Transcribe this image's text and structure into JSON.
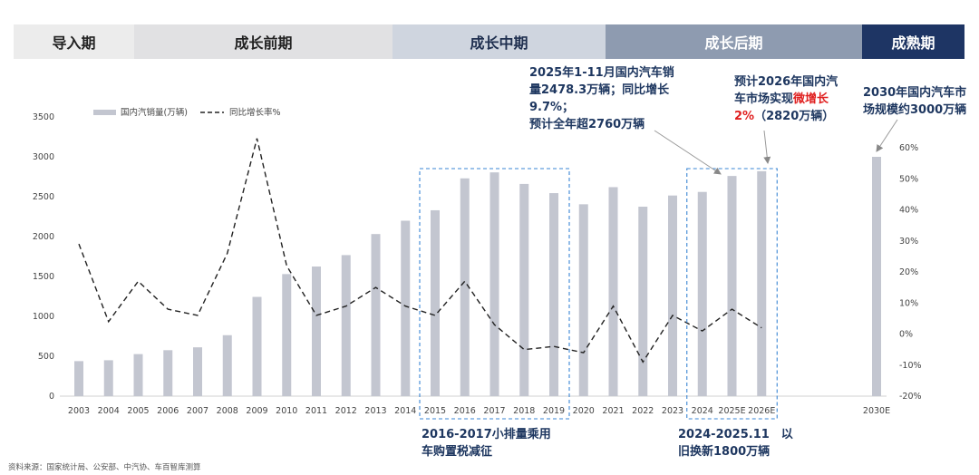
{
  "stages": [
    {
      "label": "导入期",
      "bg": "#ececec",
      "color": "#222222"
    },
    {
      "label": "成长前期",
      "bg": "#e1e1e3",
      "color": "#222222"
    },
    {
      "label": "成长中期",
      "bg": "#cfd5df",
      "color": "#1f2f4f"
    },
    {
      "label": "成长后期",
      "bg": "#8e9bb0",
      "color": "#ffffff"
    },
    {
      "label": "成熟期",
      "bg": "#1e3564",
      "color": "#ffffff"
    }
  ],
  "colors": {
    "bar": "#c3c6d0",
    "line": "#222222",
    "highlight_box": "#3a86d4",
    "annotation": "#1e3760",
    "emphasis": "#e02020"
  },
  "chart_data": {
    "type": "bar",
    "categories": [
      "2003",
      "2004",
      "2005",
      "2006",
      "2007",
      "2008",
      "2009",
      "2010",
      "2011",
      "2012",
      "2013",
      "2014",
      "2015",
      "2016",
      "2017",
      "2018",
      "2019",
      "2020",
      "2021",
      "2022",
      "2023",
      "2024",
      "2025E",
      "2026E",
      "2030E"
    ],
    "series": [
      {
        "name": "国内汽销量(万辆)",
        "type": "bar",
        "axis": "left",
        "values": [
          439,
          450,
          527,
          576,
          612,
          764,
          1244,
          1530,
          1625,
          1768,
          2032,
          2199,
          2330,
          2730,
          2805,
          2660,
          2545,
          2405,
          2620,
          2375,
          2515,
          2560,
          2760,
          2820,
          3000
        ]
      },
      {
        "name": "同比增长率%",
        "type": "line",
        "axis": "right",
        "style": "dashed",
        "values": [
          29,
          4,
          17,
          8,
          6,
          26,
          63,
          22,
          6,
          9,
          15,
          9,
          6,
          17,
          3,
          -5,
          -4,
          -6,
          9,
          -9,
          6,
          1,
          8,
          2,
          null
        ]
      }
    ],
    "y_left": {
      "min": 0,
      "max": 3500,
      "ticks": [
        0,
        500,
        1000,
        1500,
        2000,
        2500,
        3000,
        3500
      ]
    },
    "y_right": {
      "min": -20,
      "max": 60,
      "ticks": [
        "-20%",
        "-10%",
        "0%",
        "10%",
        "20%",
        "30%",
        "40%",
        "50%",
        "60%"
      ]
    },
    "legend_position": "top-left",
    "highlight_boxes": [
      {
        "from": "2015",
        "to": "2019",
        "label": "2016-2017小排量乘用车购置税减征"
      },
      {
        "from": "2024",
        "to": "2026E",
        "label": "2024-2025.11　以旧换新1800万辆"
      }
    ]
  },
  "annotations": {
    "a2025": [
      "2025年1-11月国内汽车销",
      "量2478.3万辆；同比增长",
      "9.7%；",
      "预计全年超2760万辆"
    ],
    "a2026_l1": "预计2026年国内汽",
    "a2026_l2a": "车市场实现",
    "a2026_l2b": "微增长",
    "a2026_l3a": "2%",
    "a2026_l3b": "（2820万辆）",
    "a2030": [
      "2030年国内汽车市",
      "场规模约3000万辆"
    ],
    "box1": [
      "2016-2017小排量乘用",
      "车购置税减征"
    ],
    "box2": [
      "2024-2025.11　以",
      "旧换新1800万辆"
    ]
  },
  "source": "资料来源：国家统计局、公安部、中汽协、车百智库测算"
}
